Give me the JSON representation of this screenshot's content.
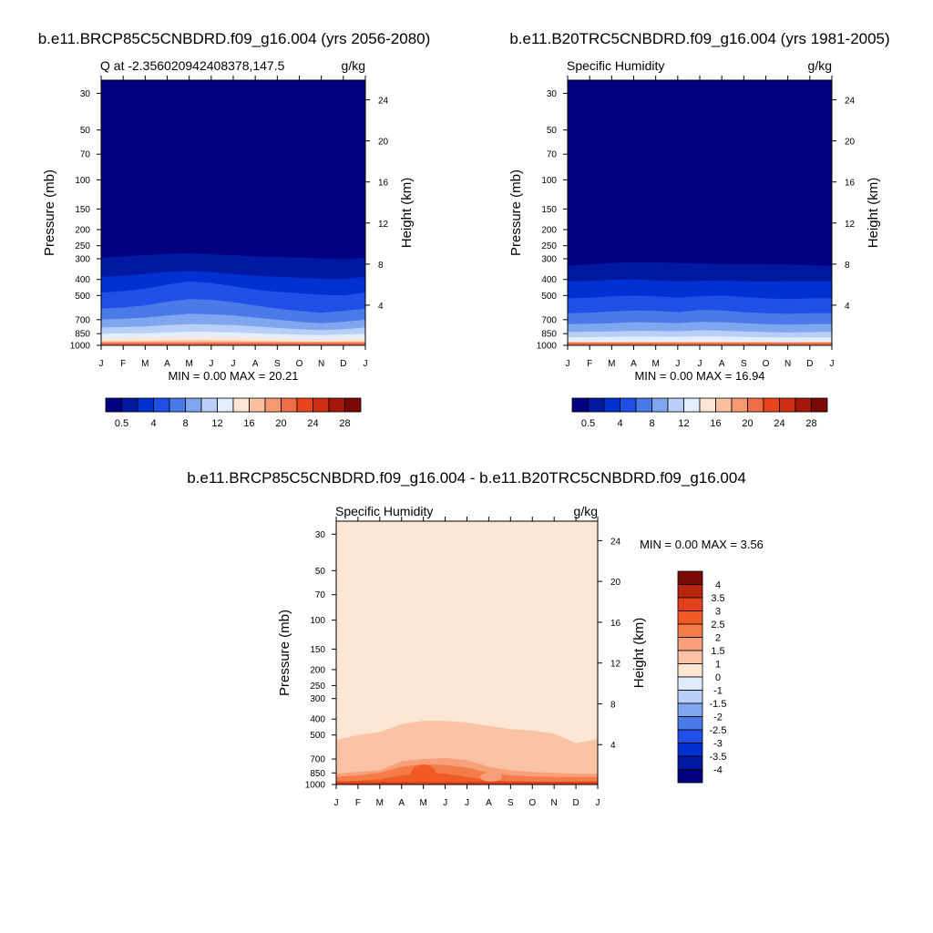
{
  "panels": [
    {
      "title": "b.e11.BRCP85C5CNBDRD.f09_g16.004 (yrs 2056-2080)",
      "left_label": "Q at -2.356020942408378,147.5",
      "right_label": "g/kg",
      "min_max": "MIN =   0.00 MAX =  20.21"
    },
    {
      "title": "b.e11.B20TRC5CNBDRD.f09_g16.004 (yrs 1981-2005)",
      "left_label": "Specific Humidity",
      "right_label": "g/kg",
      "min_max": "MIN =   0.00 MAX =  16.94"
    },
    {
      "title": "b.e11.BRCP85C5CNBDRD.f09_g16.004 - b.e11.B20TRC5CNBDRD.f09_g16.004",
      "left_label": "Specific Humidity",
      "right_label": "g/kg",
      "min_max": "MIN =   0.00 MAX =   3.56"
    }
  ],
  "axes": {
    "ylabel": "Pressure (mb)",
    "y2label": "Height (km)",
    "pressure_ticks": [
      "30",
      "50",
      "70",
      "100",
      "150",
      "200",
      "250",
      "300",
      "400",
      "500",
      "700",
      "850",
      "1000"
    ],
    "diff_pressure_ticks": [
      "30",
      "50",
      "70",
      "100",
      "150",
      "200",
      "250",
      "300",
      "400",
      "500",
      "700",
      "850",
      "1000"
    ],
    "height_ticks": [
      "24",
      "20",
      "16",
      "12",
      "8",
      "4"
    ],
    "month_ticks": [
      "J",
      "F",
      "M",
      "A",
      "M",
      "J",
      "J",
      "A",
      "S",
      "O",
      "N",
      "D",
      "J"
    ]
  },
  "colorbar_abs": {
    "labels": [
      "0.5",
      "4",
      "8",
      "12",
      "16",
      "20",
      "24",
      "28"
    ],
    "colors": [
      "#000080",
      "#0019a0",
      "#0030d0",
      "#1f4fe6",
      "#4a7ae8",
      "#80a6f0",
      "#b8d0f8",
      "#e4eefc",
      "#fde6d4",
      "#f9c0a0",
      "#f69a72",
      "#f06e45",
      "#e8451e",
      "#cc2c10",
      "#a31808",
      "#7a0a04"
    ]
  },
  "colorbar_diff": {
    "labels": [
      "4",
      "3.5",
      "3",
      "2.5",
      "2",
      "1.5",
      "1",
      "0",
      "-1",
      "-1.5",
      "-2",
      "-2.5",
      "-3",
      "-3.5",
      "-4"
    ],
    "colors": [
      "#7a0a04",
      "#b8260c",
      "#e0401a",
      "#f25a25",
      "#f47c48",
      "#f7a07a",
      "#fac3a6",
      "#fde6d4",
      "#dfeafb",
      "#b8d0f8",
      "#80a6f0",
      "#4a7ae8",
      "#1f4fe6",
      "#0030d0",
      "#0019a0",
      "#000080"
    ]
  },
  "chart_data": [
    {
      "type": "heatmap",
      "title": "b.e11.BRCP85C5CNBDRD.f09_g16.004 (yrs 2056-2080)",
      "subtitle": "Q at -2.356020942408378,147.5",
      "units": "g/kg",
      "x": [
        "J",
        "F",
        "M",
        "A",
        "M",
        "J",
        "J",
        "A",
        "S",
        "O",
        "N",
        "D",
        "J"
      ],
      "ylabel": "Pressure (mb)",
      "y2label": "Height (km)",
      "ylim": [
        1000,
        25
      ],
      "yscale": "log",
      "min": 0.0,
      "max": 20.21,
      "contour_levels": [
        0.5,
        2,
        4,
        6,
        8,
        10,
        12,
        14,
        16,
        18,
        20,
        22,
        24,
        26,
        28
      ]
    },
    {
      "type": "heatmap",
      "title": "b.e11.B20TRC5CNBDRD.f09_g16.004 (yrs 1981-2005)",
      "subtitle": "Specific Humidity",
      "units": "g/kg",
      "x": [
        "J",
        "F",
        "M",
        "A",
        "M",
        "J",
        "J",
        "A",
        "S",
        "O",
        "N",
        "D",
        "J"
      ],
      "ylabel": "Pressure (mb)",
      "y2label": "Height (km)",
      "ylim": [
        1000,
        25
      ],
      "yscale": "log",
      "min": 0.0,
      "max": 16.94,
      "contour_levels": [
        0.5,
        2,
        4,
        6,
        8,
        10,
        12,
        14,
        16,
        18,
        20,
        22,
        24,
        26,
        28
      ]
    },
    {
      "type": "heatmap",
      "title": "b.e11.BRCP85C5CNBDRD.f09_g16.004 - b.e11.B20TRC5CNBDRD.f09_g16.004",
      "subtitle": "Specific Humidity",
      "units": "g/kg",
      "x": [
        "J",
        "F",
        "M",
        "A",
        "M",
        "J",
        "J",
        "A",
        "S",
        "O",
        "N",
        "D",
        "J"
      ],
      "ylabel": "Pressure (mb)",
      "y2label": "Height (km)",
      "ylim": [
        1000,
        25
      ],
      "yscale": "log",
      "min": 0.0,
      "max": 3.56,
      "contour_levels": [
        -4,
        -3.5,
        -3,
        -2.5,
        -2,
        -1.5,
        -1,
        0,
        1,
        1.5,
        2,
        2.5,
        3,
        3.5,
        4
      ]
    }
  ]
}
